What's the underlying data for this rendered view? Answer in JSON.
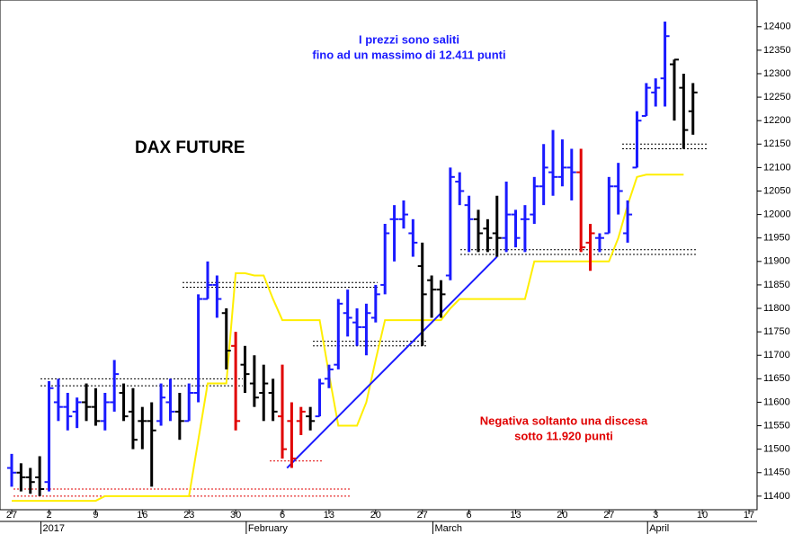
{
  "chart_data": {
    "type": "ohlc",
    "title": "DAX FUTURE",
    "annotations": [
      {
        "lines": [
          "I prezzi sono saliti",
          "fino ad un massimo di 12.411 punti"
        ],
        "color": "#1a1aff"
      },
      {
        "lines": [
          "Negativa soltanto una discesa",
          "sotto 11.920 punti"
        ],
        "color": "#e00000"
      }
    ],
    "months": [
      "2017",
      "February",
      "March",
      "April"
    ],
    "categories": [
      "27",
      null,
      null,
      null,
      "2",
      null,
      null,
      null,
      null,
      "9",
      null,
      null,
      null,
      null,
      "16",
      null,
      null,
      null,
      null,
      "23",
      null,
      null,
      null,
      null,
      "30",
      null,
      null,
      null,
      null,
      "6",
      null,
      null,
      null,
      null,
      "13",
      null,
      null,
      null,
      null,
      "20",
      null,
      null,
      null,
      null,
      "27",
      null,
      null,
      null,
      null,
      "6",
      null,
      null,
      null,
      null,
      "13",
      null,
      null,
      null,
      null,
      "20",
      null,
      null,
      null,
      null,
      "27",
      null,
      null,
      null,
      null,
      "3",
      null,
      null,
      null,
      null,
      "10",
      null,
      null,
      null,
      null,
      "17"
    ],
    "ohlc": [
      [
        11460,
        11490,
        11420,
        11450
      ],
      [
        11450,
        11470,
        11410,
        11440
      ],
      [
        11440,
        11460,
        11405,
        11430
      ],
      [
        11440,
        11485,
        11400,
        11415
      ],
      [
        11430,
        11645,
        11410,
        11630
      ],
      [
        11600,
        11650,
        11560,
        11590
      ],
      [
        11590,
        11620,
        11540,
        11570
      ],
      [
        11580,
        11610,
        11545,
        11600
      ],
      [
        11600,
        11640,
        11560,
        11590
      ],
      [
        11590,
        11630,
        11550,
        11560
      ],
      [
        11560,
        11620,
        11540,
        11600
      ],
      [
        11600,
        11690,
        11580,
        11660
      ],
      [
        11620,
        11640,
        11560,
        11570
      ],
      [
        11580,
        11630,
        11500,
        11520
      ],
      [
        11560,
        11590,
        11500,
        11560
      ],
      [
        11560,
        11600,
        11420,
        11540
      ],
      [
        11560,
        11640,
        11550,
        11610
      ],
      [
        11600,
        11650,
        11560,
        11580
      ],
      [
        11580,
        11620,
        11520,
        11560
      ],
      [
        11560,
        11640,
        11560,
        11620
      ],
      [
        11620,
        11830,
        11600,
        11820
      ],
      [
        11820,
        11900,
        11820,
        11850
      ],
      [
        11850,
        11870,
        11780,
        11820
      ],
      [
        11790,
        11800,
        11670,
        11710
      ],
      [
        11720,
        11750,
        11540,
        11560
      ],
      [
        11680,
        11720,
        11620,
        11660
      ],
      [
        11640,
        11700,
        11590,
        11610
      ],
      [
        11620,
        11680,
        11560,
        11640
      ],
      [
        11620,
        11650,
        11560,
        11580
      ],
      [
        11570,
        11680,
        11480,
        11500
      ],
      [
        11560,
        11600,
        11460,
        11480
      ],
      [
        11560,
        11590,
        11530,
        11580
      ],
      [
        11570,
        11590,
        11540,
        11560
      ],
      [
        11570,
        11650,
        11570,
        11640
      ],
      [
        11650,
        11680,
        11630,
        11670
      ],
      [
        11680,
        11820,
        11670,
        11810
      ],
      [
        11790,
        11840,
        11740,
        11780
      ],
      [
        11770,
        11800,
        11720,
        11760
      ],
      [
        11760,
        11810,
        11700,
        11790
      ],
      [
        11780,
        11850,
        11770,
        11830
      ],
      [
        11850,
        11980,
        11830,
        11960
      ],
      [
        11990,
        12020,
        11900,
        11990
      ],
      [
        11990,
        12030,
        11970,
        12000
      ],
      [
        11960,
        11990,
        11910,
        11940
      ],
      [
        11890,
        11940,
        11720,
        11830
      ],
      [
        11860,
        11870,
        11780,
        11840
      ],
      [
        11840,
        11860,
        11780,
        11830
      ],
      [
        11870,
        12100,
        11860,
        12080
      ],
      [
        12070,
        12090,
        12020,
        12050
      ],
      [
        12020,
        12040,
        11920,
        11990
      ],
      [
        11990,
        12010,
        11920,
        11960
      ],
      [
        11970,
        11990,
        11920,
        11950
      ],
      [
        11960,
        12040,
        11910,
        11950
      ],
      [
        11950,
        12070,
        11920,
        12000
      ],
      [
        12000,
        12010,
        11930,
        11950
      ],
      [
        11990,
        12020,
        11920,
        11990
      ],
      [
        12000,
        12080,
        11980,
        12060
      ],
      [
        12060,
        12150,
        12020,
        12100
      ],
      [
        12090,
        12180,
        12040,
        12080
      ],
      [
        12080,
        12160,
        12060,
        12100
      ],
      [
        12100,
        12140,
        12030,
        12090
      ],
      [
        12090,
        12140,
        11920,
        11930
      ],
      [
        11940,
        11980,
        11880,
        11960
      ],
      [
        11950,
        11960,
        11920,
        11950
      ],
      [
        11960,
        12080,
        11960,
        12060
      ],
      [
        12060,
        12110,
        12000,
        12050
      ],
      [
        11960,
        12030,
        11940,
        12000
      ],
      [
        12100,
        12220,
        12100,
        12200
      ],
      [
        12210,
        12280,
        12210,
        12270
      ],
      [
        12260,
        12290,
        12230,
        12270
      ],
      [
        12290,
        12411,
        12230,
        12380
      ],
      [
        12320,
        12330,
        12200,
        12330
      ],
      [
        12270,
        12300,
        12140,
        12180
      ],
      [
        12220,
        12280,
        12170,
        12260
      ],
      null,
      null,
      null,
      null,
      null,
      null
    ],
    "bar_colors": [
      "#1a1aff",
      "#000000",
      "#000000",
      "#000000",
      "#1a1aff",
      "#1a1aff",
      "#1a1aff",
      "#1a1aff",
      "#000000",
      "#000000",
      "#1a1aff",
      "#1a1aff",
      "#000000",
      "#000000",
      "#000000",
      "#000000",
      "#1a1aff",
      "#1a1aff",
      "#000000",
      "#1a1aff",
      "#1a1aff",
      "#1a1aff",
      "#1a1aff",
      "#000000",
      "#e00000",
      "#000000",
      "#000000",
      "#000000",
      "#000000",
      "#e00000",
      "#e00000",
      "#e00000",
      "#000000",
      "#1a1aff",
      "#1a1aff",
      "#1a1aff",
      "#1a1aff",
      "#1a1aff",
      "#1a1aff",
      "#1a1aff",
      "#1a1aff",
      "#1a1aff",
      "#1a1aff",
      "#1a1aff",
      "#000000",
      "#000000",
      "#000000",
      "#1a1aff",
      "#1a1aff",
      "#1a1aff",
      "#000000",
      "#000000",
      "#000000",
      "#1a1aff",
      "#1a1aff",
      "#1a1aff",
      "#1a1aff",
      "#1a1aff",
      "#1a1aff",
      "#1a1aff",
      "#1a1aff",
      "#e00000",
      "#e00000",
      "#1a1aff",
      "#1a1aff",
      "#1a1aff",
      "#1a1aff",
      "#1a1aff",
      "#1a1aff",
      "#1a1aff",
      "#1a1aff",
      "#000000",
      "#000000",
      "#000000",
      null,
      null,
      null,
      null,
      null,
      null
    ],
    "stop_line": {
      "color": "#ffee00",
      "values": [
        11390,
        11390,
        11390,
        11390,
        11390,
        11390,
        11390,
        11390,
        11390,
        11390,
        11400,
        11400,
        11400,
        11400,
        11400,
        11400,
        11400,
        11400,
        11400,
        11400,
        11520,
        11640,
        11640,
        11640,
        11875,
        11875,
        11870,
        11870,
        11820,
        11775,
        11775,
        11775,
        11775,
        11775,
        11660,
        11550,
        11550,
        11550,
        11600,
        11690,
        11775,
        11775,
        11775,
        11775,
        11775,
        11775,
        11775,
        11800,
        11820,
        11820,
        11820,
        11820,
        11820,
        11820,
        11820,
        11820,
        11900,
        11900,
        11900,
        11900,
        11900,
        11900,
        11900,
        11900,
        11900,
        11950,
        12020,
        12080,
        12085,
        12085,
        12085,
        12085,
        12085,
        null,
        null,
        null,
        null,
        null,
        null,
        null
      ]
    },
    "trendline": {
      "color": "#1a1aff",
      "values": [
        11460,
        11910
      ]
    },
    "levels": [
      {
        "values": [
          11415,
          11400
        ],
        "color": "#e00000"
      },
      {
        "values": [
          11650,
          11635
        ],
        "color": "#000000"
      },
      {
        "values": [
          11855,
          11845
        ],
        "color": "#000000"
      },
      {
        "values": [
          11730,
          11720
        ],
        "color": "#000000"
      },
      {
        "values": [
          11475
        ],
        "color": "#e00000"
      },
      {
        "values": [
          11925,
          11915
        ],
        "color": "#000000"
      },
      {
        "values": [
          12150,
          12140
        ],
        "color": "#000000"
      }
    ],
    "ylim": [
      11371,
      12457
    ],
    "yticks": [
      11400,
      11450,
      11500,
      11550,
      11600,
      11650,
      11700,
      11750,
      11800,
      11850,
      11900,
      11950,
      12000,
      12050,
      12100,
      12150,
      12200,
      12250,
      12300,
      12350,
      12400
    ]
  }
}
